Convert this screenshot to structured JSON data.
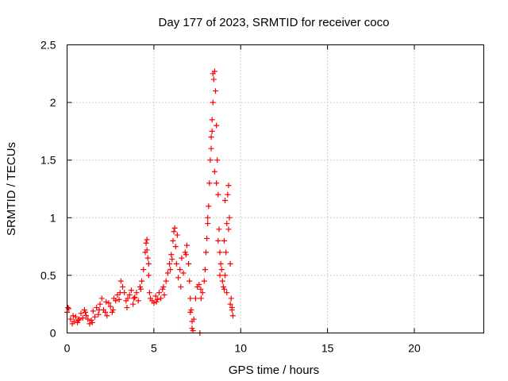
{
  "chart_data": {
    "type": "scatter",
    "title": "Day 177 of 2023, SRMTID for receiver coco",
    "xlabel": "GPS time / hours",
    "ylabel": "SRMTID / TECUs",
    "xlim": [
      0,
      24
    ],
    "ylim": [
      0,
      2.5
    ],
    "x_ticks": [
      0,
      5,
      10,
      15,
      20
    ],
    "x_tick_labels": [
      "0",
      "5",
      "10",
      "15",
      "20"
    ],
    "y_ticks": [
      0,
      0.5,
      1,
      1.5,
      2,
      2.5
    ],
    "y_tick_labels": [
      "0",
      "0.5",
      "1",
      "1.5",
      "2",
      "2.5"
    ],
    "grid": true,
    "marker": "+",
    "series": [
      {
        "name": "SRMTID",
        "color": "#ff0000",
        "x": [
          0.0,
          0.1,
          0.2,
          0.3,
          0.4,
          0.5,
          0.6,
          0.7,
          0.8,
          0.9,
          1.0,
          1.1,
          1.2,
          1.3,
          1.4,
          1.5,
          1.6,
          1.7,
          1.8,
          1.9,
          2.0,
          2.1,
          2.2,
          2.3,
          2.4,
          2.5,
          2.6,
          2.7,
          2.8,
          2.9,
          3.0,
          3.1,
          3.2,
          3.3,
          3.4,
          3.5,
          3.6,
          3.7,
          3.8,
          3.9,
          4.0,
          4.1,
          4.2,
          4.3,
          4.4,
          4.5,
          4.55,
          4.6,
          4.65,
          4.7,
          4.75,
          4.8,
          4.9,
          5.0,
          5.1,
          5.2,
          5.3,
          5.4,
          5.5,
          5.6,
          5.7,
          5.8,
          5.9,
          6.0,
          6.1,
          6.15,
          6.2,
          6.25,
          6.3,
          6.4,
          6.5,
          6.6,
          6.7,
          6.8,
          6.9,
          7.0,
          7.05,
          7.1,
          7.15,
          7.2,
          7.25,
          7.3,
          7.4,
          7.5,
          7.6,
          7.7,
          7.8,
          7.9,
          7.95,
          8.0,
          8.05,
          8.1,
          8.15,
          8.2,
          8.25,
          8.3,
          8.35,
          8.4,
          8.45,
          8.5,
          8.55,
          8.6,
          8.65,
          8.7,
          8.75,
          8.8,
          8.85,
          8.9,
          8.95,
          9.0,
          9.05,
          9.1,
          9.15,
          9.2,
          9.25,
          9.3,
          9.35,
          9.4,
          9.45,
          9.5,
          9.55
        ],
        "values": [
          0.18,
          0.21,
          0.12,
          0.08,
          0.1,
          0.14,
          0.09,
          0.12,
          0.17,
          0.13,
          0.2,
          0.15,
          0.12,
          0.08,
          0.11,
          0.19,
          0.14,
          0.22,
          0.16,
          0.25,
          0.3,
          0.2,
          0.18,
          0.15,
          0.26,
          0.23,
          0.18,
          0.3,
          0.28,
          0.33,
          0.29,
          0.45,
          0.4,
          0.35,
          0.28,
          0.3,
          0.33,
          0.37,
          0.25,
          0.31,
          0.35,
          0.28,
          0.4,
          0.45,
          0.55,
          0.7,
          0.78,
          0.81,
          0.65,
          0.5,
          0.35,
          0.3,
          0.28,
          0.26,
          0.32,
          0.29,
          0.35,
          0.3,
          0.38,
          0.33,
          0.45,
          0.52,
          0.6,
          0.68,
          0.8,
          0.88,
          0.91,
          0.75,
          0.6,
          0.48,
          0.55,
          0.65,
          0.52,
          0.7,
          0.76,
          0.6,
          0.45,
          0.3,
          0.2,
          0.1,
          0.02,
          0.12,
          0.3,
          0.4,
          0.42,
          0.38,
          0.35,
          0.45,
          0.55,
          0.7,
          0.82,
          0.95,
          1.1,
          1.3,
          1.5,
          1.7,
          1.85,
          2.0,
          2.2,
          2.27,
          2.1,
          1.8,
          1.5,
          1.2,
          0.9,
          0.7,
          0.6,
          0.55,
          0.45,
          0.4,
          0.38,
          0.5,
          0.7,
          0.95,
          1.2,
          1.28,
          1.0,
          0.6,
          0.3,
          0.2,
          0.15
        ],
        "extra_x": [
          0.05,
          0.35,
          0.65,
          1.05,
          1.45,
          1.85,
          2.25,
          2.65,
          3.05,
          3.45,
          3.85,
          4.25,
          4.6,
          4.7,
          5.15,
          5.55,
          5.95,
          6.05,
          6.35,
          6.55,
          6.85,
          7.1,
          7.2,
          7.65,
          7.72,
          8.1,
          8.3,
          8.35,
          8.4,
          8.5,
          8.6,
          8.7,
          8.8,
          9.05,
          9.1,
          9.2,
          9.3,
          9.4,
          9.5
        ],
        "extra_values": [
          0.22,
          0.15,
          0.11,
          0.18,
          0.09,
          0.2,
          0.27,
          0.2,
          0.35,
          0.22,
          0.3,
          0.38,
          0.72,
          0.6,
          0.27,
          0.4,
          0.55,
          0.64,
          0.85,
          0.4,
          0.68,
          0.18,
          0.04,
          0.0,
          0.3,
          1.0,
          1.6,
          1.75,
          2.25,
          1.4,
          1.3,
          0.8,
          0.5,
          0.8,
          1.15,
          0.35,
          0.9,
          0.25,
          0.22
        ]
      }
    ]
  }
}
